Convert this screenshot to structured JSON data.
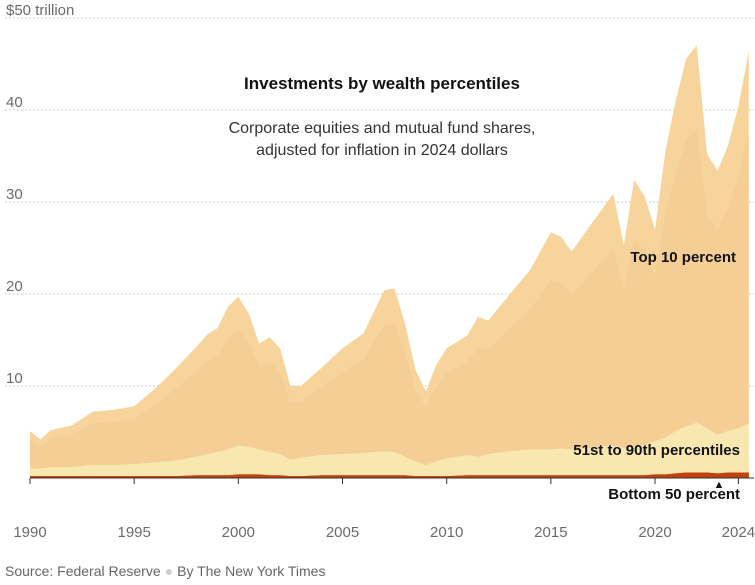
{
  "chart_data": {
    "type": "area",
    "title": "Investments by wealth percentiles",
    "subtitle_lines": [
      "Corporate equities and mutual fund shares,",
      "adjusted for inflation in 2024 dollars"
    ],
    "y_axis_top_label": "$50  trillion",
    "ylim": [
      0,
      50
    ],
    "yticks": [
      10,
      20,
      30,
      40
    ],
    "xlim": [
      1990,
      2024.75
    ],
    "xticks": [
      1990,
      1995,
      2000,
      2005,
      2010,
      2015,
      2020,
      2024
    ],
    "stacked": true,
    "colors": {
      "Bottom 50 percent": "#c2410c",
      "51st to 90th percentiles": "#f8e8b0",
      "Top 10 percent": "#f6d49c",
      "top_1_percent_shade": "#f2c88e"
    },
    "x": [
      1990,
      1990.5,
      1991,
      1992,
      1993,
      1994,
      1995,
      1996,
      1997,
      1998,
      1998.5,
      1999,
      1999.5,
      2000,
      2000.5,
      2001,
      2001.5,
      2002,
      2002.5,
      2003,
      2004,
      2005,
      2006,
      2007,
      2007.5,
      2008,
      2008.5,
      2009,
      2009.5,
      2010,
      2011,
      2011.5,
      2012,
      2013,
      2014,
      2015,
      2015.5,
      2016,
      2017,
      2018,
      2018.5,
      2019,
      2019.5,
      2020,
      2020.5,
      2021,
      2021.5,
      2022,
      2022.5,
      2023,
      2023.5,
      2024,
      2024.5
    ],
    "series": [
      {
        "name": "Bottom 50 percent",
        "values": [
          0.2,
          0.2,
          0.2,
          0.2,
          0.2,
          0.2,
          0.2,
          0.2,
          0.2,
          0.3,
          0.3,
          0.3,
          0.3,
          0.4,
          0.4,
          0.4,
          0.3,
          0.3,
          0.2,
          0.2,
          0.3,
          0.3,
          0.3,
          0.3,
          0.3,
          0.3,
          0.2,
          0.2,
          0.2,
          0.2,
          0.3,
          0.3,
          0.3,
          0.3,
          0.3,
          0.3,
          0.3,
          0.3,
          0.3,
          0.3,
          0.3,
          0.3,
          0.3,
          0.4,
          0.4,
          0.5,
          0.6,
          0.6,
          0.6,
          0.5,
          0.6,
          0.6,
          0.6
        ]
      },
      {
        "name": "51st to 90th percentiles",
        "values": [
          0.8,
          0.8,
          1.0,
          1.0,
          1.2,
          1.2,
          1.3,
          1.5,
          1.7,
          2.0,
          2.3,
          2.5,
          2.8,
          3.1,
          3.0,
          2.7,
          2.5,
          2.3,
          1.8,
          2.0,
          2.2,
          2.3,
          2.4,
          2.6,
          2.5,
          2.0,
          1.6,
          1.2,
          1.6,
          1.9,
          2.2,
          2.0,
          2.3,
          2.6,
          2.8,
          2.8,
          2.9,
          2.8,
          3.0,
          3.2,
          3.0,
          3.1,
          3.3,
          3.6,
          4.0,
          4.6,
          5.0,
          5.4,
          4.8,
          4.2,
          4.5,
          4.8,
          5.3
        ]
      },
      {
        "name": "Top 10 percent",
        "values": [
          4.1,
          3.2,
          4.0,
          4.5,
          5.8,
          6.0,
          6.3,
          8.0,
          10.0,
          12.0,
          13.0,
          13.5,
          15.5,
          16.2,
          14.5,
          11.5,
          12.5,
          11.5,
          8.0,
          7.8,
          9.5,
          11.5,
          13.0,
          17.5,
          17.8,
          14.5,
          10.0,
          8.0,
          10.5,
          12.0,
          13.0,
          15.2,
          14.5,
          17.0,
          19.5,
          23.6,
          23.0,
          21.5,
          24.5,
          27.4,
          22.0,
          29.0,
          27.0,
          23.0,
          31.2,
          36.0,
          40.0,
          41.0,
          29.8,
          28.7,
          31.0,
          35.0,
          40.5
        ]
      }
    ],
    "series_labels": [
      "Top 10 percent",
      "51st to 90th percentiles",
      "Bottom 50 percent"
    ],
    "annotation_marker": "▲"
  },
  "source": "Source: Federal Reserve",
  "byline": "By The New York Times"
}
